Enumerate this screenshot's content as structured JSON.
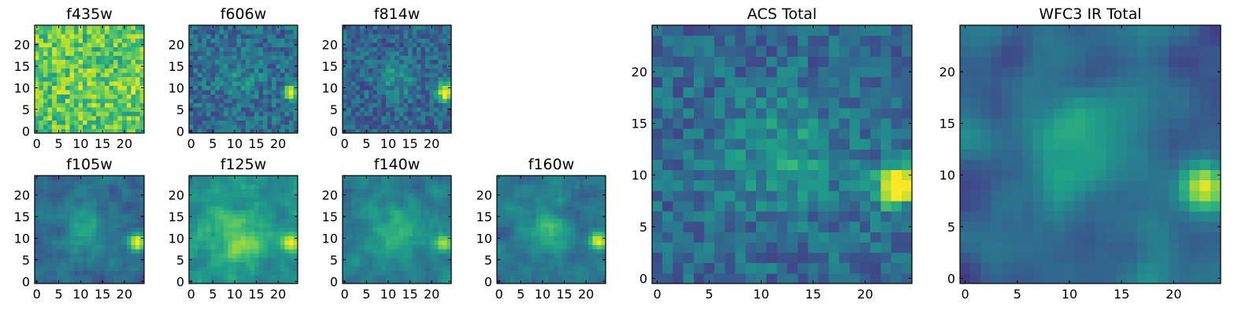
{
  "chart_data": [
    {
      "type": "heatmap",
      "title": "f435w",
      "xticks": [
        "0",
        "5",
        "10",
        "15",
        "20"
      ],
      "yticks": [
        "0",
        "5",
        "10",
        "15",
        "20"
      ],
      "xlim": [
        -0.5,
        24.5
      ],
      "ylim": [
        -0.5,
        24.5
      ],
      "source": {
        "x": 23,
        "y": 9,
        "amp": 0.1,
        "r": 1.3
      },
      "galaxy": {
        "x": 11,
        "y": 11,
        "amp": 0.04,
        "r": 4
      },
      "base": 0.74,
      "noise": 0.2,
      "smooth": 0,
      "seed": 11
    },
    {
      "type": "heatmap",
      "title": "f606w",
      "xticks": [
        "0",
        "5",
        "10",
        "15",
        "20"
      ],
      "yticks": [
        "0",
        "5",
        "10",
        "15",
        "20"
      ],
      "xlim": [
        -0.5,
        24.5
      ],
      "ylim": [
        -0.5,
        24.5
      ],
      "source": {
        "x": 23,
        "y": 9,
        "amp": 0.75,
        "r": 1.2
      },
      "galaxy": {
        "x": 11,
        "y": 12,
        "amp": 0.1,
        "r": 3.5
      },
      "base": 0.36,
      "noise": 0.16,
      "smooth": 0,
      "seed": 22
    },
    {
      "type": "heatmap",
      "title": "f814w",
      "xticks": [
        "0",
        "5",
        "10",
        "15",
        "20"
      ],
      "yticks": [
        "0",
        "5",
        "10",
        "15",
        "20"
      ],
      "xlim": [
        -0.5,
        24.5
      ],
      "ylim": [
        -0.5,
        24.5
      ],
      "source": {
        "x": 23,
        "y": 9,
        "amp": 0.8,
        "r": 1.3
      },
      "galaxy": {
        "x": 12,
        "y": 12,
        "amp": 0.18,
        "r": 3
      },
      "base": 0.33,
      "noise": 0.15,
      "smooth": 0,
      "seed": 33
    },
    {
      "type": "heatmap",
      "title": "f105w",
      "xticks": [
        "0",
        "5",
        "10",
        "15",
        "20"
      ],
      "yticks": [
        "0",
        "5",
        "10",
        "15",
        "20"
      ],
      "xlim": [
        -0.5,
        24.5
      ],
      "ylim": [
        -0.5,
        24.5
      ],
      "source": {
        "x": 23,
        "y": 9,
        "amp": 0.7,
        "r": 1.5
      },
      "galaxy": {
        "x": 11,
        "y": 12,
        "amp": 0.22,
        "r": 3.5
      },
      "base": 0.35,
      "noise": 0.12,
      "smooth": 1,
      "seed": 44
    },
    {
      "type": "heatmap",
      "title": "f125w",
      "xticks": [
        "0",
        "5",
        "10",
        "15",
        "20"
      ],
      "yticks": [
        "0",
        "5",
        "10",
        "15",
        "20"
      ],
      "xlim": [
        -0.5,
        24.5
      ],
      "ylim": [
        -0.5,
        24.5
      ],
      "source": {
        "x": 23,
        "y": 9,
        "amp": 0.5,
        "r": 1.6
      },
      "galaxy": {
        "x": 11,
        "y": 11,
        "amp": 0.25,
        "r": 5
      },
      "base": 0.5,
      "noise": 0.12,
      "smooth": 1,
      "seed": 55
    },
    {
      "type": "heatmap",
      "title": "f140w",
      "xticks": [
        "0",
        "5",
        "10",
        "15",
        "20"
      ],
      "yticks": [
        "0",
        "5",
        "10",
        "15",
        "20"
      ],
      "xlim": [
        -0.5,
        24.5
      ],
      "ylim": [
        -0.5,
        24.5
      ],
      "source": {
        "x": 23,
        "y": 9,
        "amp": 0.55,
        "r": 1.5
      },
      "galaxy": {
        "x": 12,
        "y": 11,
        "amp": 0.22,
        "r": 4.5
      },
      "base": 0.42,
      "noise": 0.12,
      "smooth": 1,
      "seed": 66
    },
    {
      "type": "heatmap",
      "title": "f160w",
      "xticks": [
        "0",
        "5",
        "10",
        "15",
        "20"
      ],
      "yticks": [
        "0",
        "5",
        "10",
        "15",
        "20"
      ],
      "xlim": [
        -0.5,
        24.5
      ],
      "ylim": [
        -0.5,
        24.5
      ],
      "source": {
        "x": 23,
        "y": 9,
        "amp": 0.6,
        "r": 1.5
      },
      "galaxy": {
        "x": 11,
        "y": 12,
        "amp": 0.25,
        "r": 3.5
      },
      "base": 0.38,
      "noise": 0.12,
      "smooth": 1,
      "seed": 77
    },
    {
      "type": "heatmap",
      "title": "ACS Total",
      "xticks": [
        "0",
        "5",
        "10",
        "15",
        "20"
      ],
      "yticks": [
        "0",
        "5",
        "10",
        "15",
        "20"
      ],
      "xlim": [
        -0.5,
        24.5
      ],
      "ylim": [
        -0.5,
        24.5
      ],
      "source": {
        "x": 23,
        "y": 9,
        "amp": 0.75,
        "r": 1.4
      },
      "galaxy": {
        "x": 12,
        "y": 12,
        "amp": 0.2,
        "r": 3.5
      },
      "base": 0.35,
      "noise": 0.14,
      "smooth": 0,
      "seed": 88
    },
    {
      "type": "heatmap",
      "title": "WFC3 IR Total",
      "xticks": [
        "0",
        "5",
        "10",
        "15",
        "20"
      ],
      "yticks": [
        "0",
        "5",
        "10",
        "15",
        "20"
      ],
      "xlim": [
        -0.5,
        24.5
      ],
      "ylim": [
        -0.5,
        24.5
      ],
      "source": {
        "x": 23,
        "y": 9,
        "amp": 0.65,
        "r": 1.6
      },
      "galaxy": {
        "x": 11,
        "y": 12,
        "amp": 0.3,
        "r": 4
      },
      "base": 0.33,
      "noise": 0.1,
      "smooth": 2,
      "seed": 99
    }
  ],
  "colors": {
    "colormap": "viridis",
    "viridis": [
      "#440154",
      "#482878",
      "#3e4989",
      "#31688e",
      "#26828e",
      "#1f9e89",
      "#35b779",
      "#6ece58",
      "#b5de2b",
      "#fde725"
    ],
    "axes": "#000000",
    "background": "#ffffff"
  }
}
